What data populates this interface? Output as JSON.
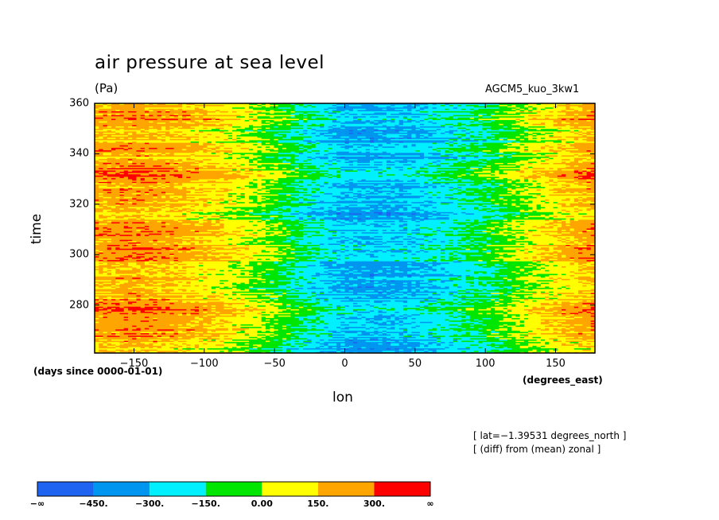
{
  "chart_data": {
    "type": "heatmap",
    "title": "air pressure at sea level",
    "units": "(Pa)",
    "experiment": "AGCM5_kuo_3kw1",
    "xlabel": "lon",
    "ylabel": "time",
    "x_units": "(degrees_east)",
    "time_units": "(days since 0000-01-01)",
    "xlim": [
      -178,
      178
    ],
    "ylim": [
      261,
      360
    ],
    "xticks": [
      -150,
      -100,
      -50,
      0,
      50,
      100,
      150
    ],
    "xtick_labels": [
      "−150",
      "−100",
      "−50",
      "0",
      "50",
      "100",
      "150"
    ],
    "yticks": [
      280,
      300,
      320,
      340,
      360
    ],
    "ytick_labels": [
      "280",
      "300",
      "320",
      "340",
      "360"
    ],
    "annotations": [
      "[ lat=−1.39531 degrees_north ]",
      "[ (diff) from (mean) zonal ]"
    ],
    "colorbar": {
      "levels": [
        -450,
        -300,
        -150,
        0,
        150,
        300
      ],
      "labels": [
        "−∞",
        "−450.",
        "−300.",
        "−150.",
        "0.00",
        "150.",
        "300.",
        "∞"
      ],
      "colors": [
        "#1e64f0",
        "#0096f0",
        "#00f0ff",
        "#00e600",
        "#ffff00",
        "#ffa500",
        "#ff0000"
      ]
    },
    "lon_profile": {
      "lon": [
        -178,
        -150,
        -120,
        -90,
        -70,
        -50,
        -30,
        -10,
        0,
        20,
        50,
        80,
        100,
        130,
        150,
        178
      ],
      "anomaly": [
        200,
        230,
        190,
        120,
        50,
        -40,
        -160,
        -250,
        -300,
        -310,
        -280,
        -180,
        -120,
        30,
        120,
        220
      ]
    }
  }
}
